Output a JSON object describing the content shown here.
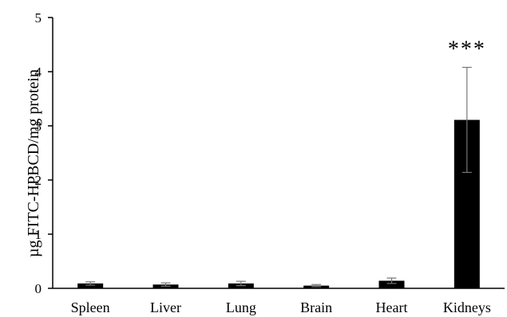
{
  "chart_data": {
    "type": "bar",
    "categories": [
      "Spleen",
      "Liver",
      "Lung",
      "Brain",
      "Heart",
      "Kidneys"
    ],
    "values": [
      0.09,
      0.07,
      0.09,
      0.05,
      0.14,
      3.11
    ],
    "errors": [
      0.03,
      0.03,
      0.04,
      0.02,
      0.05,
      0.97
    ],
    "ylabel": "µg FITC-HPBCD/mg protein",
    "ylim": [
      0,
      5
    ],
    "yticks": [
      "0",
      "1",
      "2",
      "3",
      "4",
      "5"
    ],
    "grid": false,
    "bar_color": "#000000",
    "annotations": [
      {
        "category": "Kidneys",
        "text": "***"
      }
    ]
  }
}
